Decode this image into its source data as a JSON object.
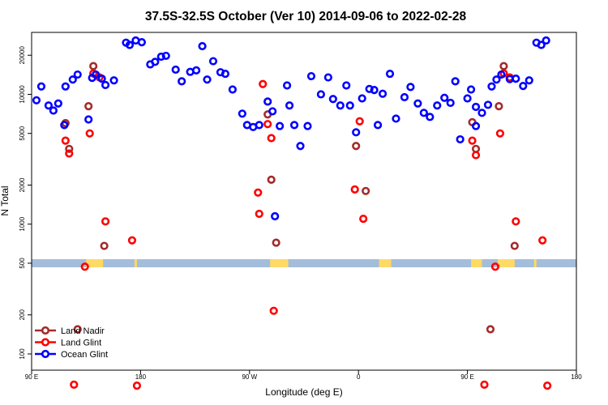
{
  "chart_data": {
    "type": "scatter",
    "title": "37.5S-32.5S October (Ver 10)   2014-09-06 to 2022-02-28",
    "xlabel": "Longitude (deg E)",
    "ylabel": "N Total",
    "y_scale": "log",
    "ylim": [
      75,
      30000
    ],
    "x_ticks": [
      {
        "value": 90,
        "label": "90 E"
      },
      {
        "value": 180,
        "label": "180"
      },
      {
        "value": 270,
        "label": "90 W"
      },
      {
        "value": 360,
        "label": "0"
      },
      {
        "value": 450,
        "label": "90 E"
      },
      {
        "value": 540,
        "label": "180"
      }
    ],
    "xlim": [
      90,
      540
    ],
    "y_ticks": [
      {
        "value": 100,
        "label": "100"
      },
      {
        "value": 200,
        "label": "200"
      },
      {
        "value": 500,
        "label": "500"
      },
      {
        "value": 1000,
        "label": "1000"
      },
      {
        "value": 2000,
        "label": "2000"
      },
      {
        "value": 5000,
        "label": "5000"
      },
      {
        "value": 10000,
        "label": "10000"
      },
      {
        "value": 20000,
        "label": "20000"
      }
    ],
    "map_strip": {
      "ocean_color": "#a3bddb",
      "land_color": "#ffd966",
      "land_spans": [
        [
          135,
          149
        ],
        [
          175,
          177
        ],
        [
          287,
          302
        ],
        [
          377,
          387
        ],
        [
          453,
          462
        ],
        [
          475,
          489
        ],
        [
          505,
          507
        ]
      ]
    },
    "legend_position": "bottom-left",
    "series": [
      {
        "name": "Land Nadir",
        "color": "#a52a2a",
        "points": [
          [
            118,
            6000
          ],
          [
            121,
            3800
          ],
          [
            128,
            155
          ],
          [
            137,
            8100
          ],
          [
            141,
            16500
          ],
          [
            150,
            680
          ],
          [
            285,
            7000
          ],
          [
            288,
            2200
          ],
          [
            292,
            720
          ],
          [
            358,
            4000
          ],
          [
            366,
            1800
          ],
          [
            454,
            6100
          ],
          [
            457,
            3800
          ],
          [
            469,
            155
          ],
          [
            476,
            8100
          ],
          [
            480,
            16500
          ],
          [
            489,
            680
          ]
        ]
      },
      {
        "name": "Land Glint",
        "color": "#ff0000",
        "points": [
          [
            118,
            4400
          ],
          [
            121,
            3500
          ],
          [
            125,
            58
          ],
          [
            134,
            470
          ],
          [
            138,
            5000
          ],
          [
            141,
            14500
          ],
          [
            146,
            13500
          ],
          [
            151,
            1050
          ],
          [
            173,
            750
          ],
          [
            177,
            57
          ],
          [
            277,
            1750
          ],
          [
            278,
            1200
          ],
          [
            281,
            12000
          ],
          [
            285,
            5900
          ],
          [
            288,
            4600
          ],
          [
            290,
            215
          ],
          [
            357,
            1850
          ],
          [
            361,
            6200
          ],
          [
            364,
            1100
          ],
          [
            454,
            4400
          ],
          [
            457,
            3400
          ],
          [
            464,
            58
          ],
          [
            473,
            470
          ],
          [
            477,
            5000
          ],
          [
            480,
            14500
          ],
          [
            485,
            13500
          ],
          [
            490,
            1050
          ],
          [
            512,
            750
          ],
          [
            516,
            57
          ]
        ]
      },
      {
        "name": "Ocean Glint",
        "color": "#0000ff",
        "points": [
          [
            94,
            9000
          ],
          [
            98,
            11500
          ],
          [
            104,
            8200
          ],
          [
            108,
            7500
          ],
          [
            112,
            8500
          ],
          [
            117,
            5800
          ],
          [
            118,
            11500
          ],
          [
            124,
            13000
          ],
          [
            128,
            14200
          ],
          [
            137,
            6400
          ],
          [
            140,
            13400
          ],
          [
            143,
            14200
          ],
          [
            148,
            13200
          ],
          [
            151,
            11800
          ],
          [
            158,
            12800
          ],
          [
            168,
            25000
          ],
          [
            171,
            24000
          ],
          [
            176,
            26000
          ],
          [
            181,
            25200
          ],
          [
            188,
            17000
          ],
          [
            192,
            17800
          ],
          [
            197,
            19500
          ],
          [
            201,
            19800
          ],
          [
            209,
            15500
          ],
          [
            214,
            12600
          ],
          [
            221,
            14900
          ],
          [
            226,
            15300
          ],
          [
            231,
            23500
          ],
          [
            235,
            13000
          ],
          [
            240,
            18000
          ],
          [
            246,
            14800
          ],
          [
            250,
            14400
          ],
          [
            256,
            10900
          ],
          [
            264,
            7100
          ],
          [
            268,
            5800
          ],
          [
            273,
            5600
          ],
          [
            278,
            5800
          ],
          [
            285,
            8800
          ],
          [
            289,
            7400
          ],
          [
            295,
            5700
          ],
          [
            301,
            11700
          ],
          [
            303,
            8200
          ],
          [
            307,
            5800
          ],
          [
            312,
            4000
          ],
          [
            318,
            5700
          ],
          [
            321,
            13800
          ],
          [
            329,
            10000
          ],
          [
            335,
            13500
          ],
          [
            339,
            9200
          ],
          [
            345,
            8200
          ],
          [
            350,
            11700
          ],
          [
            353,
            8200
          ],
          [
            358,
            5100
          ],
          [
            363,
            9300
          ],
          [
            369,
            11000
          ],
          [
            373,
            10800
          ],
          [
            376,
            5800
          ],
          [
            380,
            10100
          ],
          [
            386,
            14400
          ],
          [
            391,
            6500
          ],
          [
            398,
            9500
          ],
          [
            403,
            11400
          ],
          [
            409,
            8500
          ],
          [
            414,
            7200
          ],
          [
            419,
            6700
          ],
          [
            425,
            8200
          ],
          [
            431,
            9400
          ],
          [
            436,
            8600
          ],
          [
            440,
            12600
          ],
          [
            444,
            4500
          ],
          [
            450,
            9300
          ],
          [
            453,
            10900
          ],
          [
            457,
            5700
          ],
          [
            457,
            8000
          ],
          [
            462,
            7200
          ],
          [
            467,
            8300
          ],
          [
            470,
            11500
          ],
          [
            474,
            13000
          ],
          [
            478,
            14200
          ],
          [
            485,
            13100
          ],
          [
            490,
            13200
          ],
          [
            496,
            11600
          ],
          [
            501,
            12800
          ],
          [
            507,
            25000
          ],
          [
            511,
            24000
          ],
          [
            515,
            26000
          ]
        ]
      },
      {
        "name": "",
        "color": "#0000ff",
        "points": [
          [
            291,
            1150
          ]
        ]
      }
    ]
  }
}
